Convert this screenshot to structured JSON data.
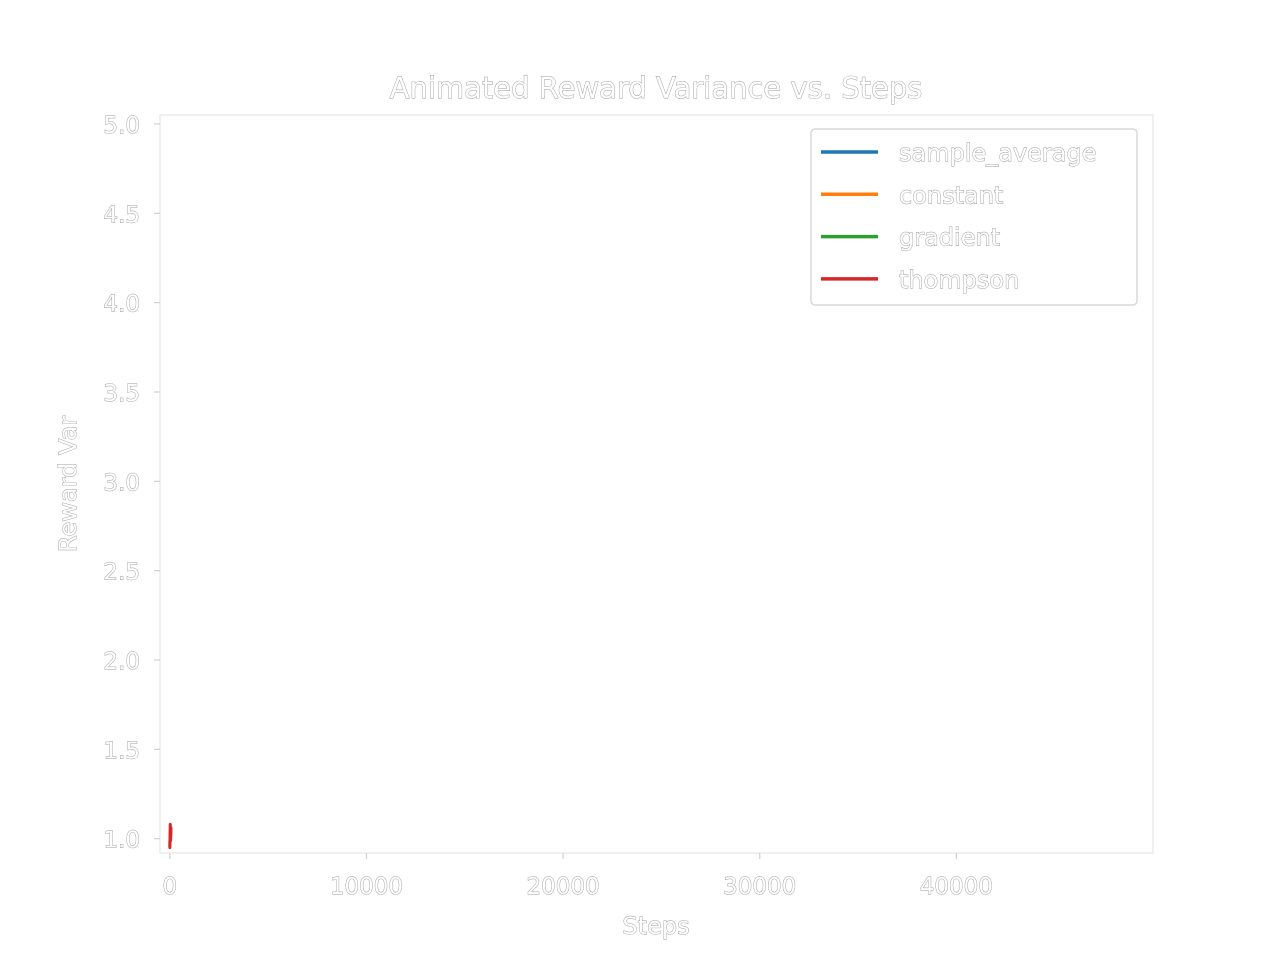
{
  "chart_data": {
    "type": "line",
    "title": "Animated Reward Variance vs. Steps",
    "xlabel": "Steps",
    "ylabel": "Reward Var",
    "xlim": [
      -500,
      50000
    ],
    "ylim": [
      0.92,
      5.05
    ],
    "xticks": [
      0,
      10000,
      20000,
      30000,
      40000
    ],
    "xtick_labels": [
      "0",
      "10000",
      "20000",
      "30000",
      "40000"
    ],
    "yticks": [
      1.0,
      1.5,
      2.0,
      2.5,
      3.0,
      3.5,
      4.0,
      4.5,
      5.0
    ],
    "ytick_labels": [
      "1.0",
      "1.5",
      "2.0",
      "2.5",
      "3.0",
      "3.5",
      "4.0",
      "4.5",
      "5.0"
    ],
    "grid": false,
    "legend_position": "top-right",
    "series": [
      {
        "name": "sample_average",
        "color": "#1f77b4",
        "x": [
          0,
          25,
          50
        ],
        "y": [
          0.96,
          1.0,
          1.03
        ]
      },
      {
        "name": "constant",
        "color": "#ff7f0e",
        "x": [
          0,
          25,
          50
        ],
        "y": [
          0.97,
          1.0,
          1.04
        ]
      },
      {
        "name": "gradient",
        "color": "#2ca02c",
        "x": [
          0,
          25,
          50
        ],
        "y": [
          0.98,
          1.01,
          1.05
        ]
      },
      {
        "name": "thompson",
        "color": "#d62728",
        "x": [
          0,
          20,
          40,
          60
        ],
        "y": [
          0.95,
          1.08,
          0.99,
          1.06
        ]
      }
    ]
  }
}
